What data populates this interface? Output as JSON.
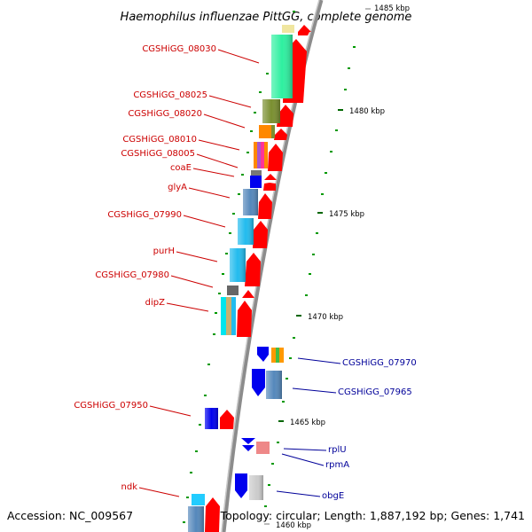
{
  "title": "Haemophilus influenzae PittGG, complete genome",
  "footer": {
    "accession": "Accession: NC_009567",
    "summary": "Topology: circular; Length: 1,887,192 bp; Genes: 1,741"
  },
  "colors": {
    "left_label": "#cc0000",
    "right_label": "#000099",
    "cds_forward": "#ff0000",
    "cds_reverse": "#0000ee",
    "gc_tick": "#009900",
    "backbone": "#888888"
  },
  "ruler": [
    {
      "label": "1485 kbp"
    },
    {
      "label": "1480 kbp"
    },
    {
      "label": "1475 kbp"
    },
    {
      "label": "1470 kbp"
    },
    {
      "label": "1465 kbp"
    },
    {
      "label": "1460 kbp"
    }
  ],
  "left_genes": [
    {
      "name": "CGSHiGG_08030"
    },
    {
      "name": "CGSHiGG_08025"
    },
    {
      "name": "CGSHiGG_08020"
    },
    {
      "name": "CGSHiGG_08010"
    },
    {
      "name": "CGSHiGG_08005"
    },
    {
      "name": "coaE"
    },
    {
      "name": "glyA"
    },
    {
      "name": "CGSHiGG_07990"
    },
    {
      "name": "purH"
    },
    {
      "name": "CGSHiGG_07980"
    },
    {
      "name": "dipZ"
    },
    {
      "name": "CGSHiGG_07950"
    },
    {
      "name": "ndk"
    }
  ],
  "right_genes": [
    {
      "name": "CGSHiGG_07970"
    },
    {
      "name": "CGSHiGG_07965"
    },
    {
      "name": "rplU"
    },
    {
      "name": "rpmA"
    },
    {
      "name": "obgE"
    }
  ]
}
